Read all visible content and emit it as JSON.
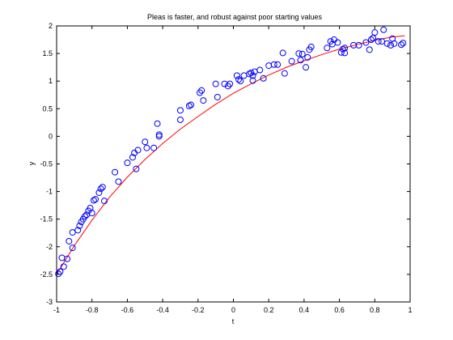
{
  "chart_data": {
    "type": "scatter",
    "title": "Pleas is faster, and robust against poor starting values",
    "xlabel": "t",
    "ylabel": "y",
    "xlim": [
      -1,
      1
    ],
    "ylim": [
      -3,
      2
    ],
    "xticks": [
      -1,
      -0.8,
      -0.6,
      -0.4,
      -0.2,
      0,
      0.2,
      0.4,
      0.6,
      0.8,
      1
    ],
    "xtick_labels": [
      "-1",
      "-0.8",
      "-0.6",
      "-0.4",
      "-0.2",
      "0",
      "0.2",
      "0.4",
      "0.6",
      "0.8",
      "1"
    ],
    "yticks": [
      -3,
      -2.5,
      -2,
      -1.5,
      -1,
      -0.5,
      0,
      0.5,
      1,
      1.5,
      2
    ],
    "ytick_labels": [
      "-3",
      "-2.5",
      "-2",
      "-1.5",
      "-1",
      "-0.5",
      "0",
      "0.5",
      "1",
      "1.5",
      "2"
    ],
    "grid": false,
    "series": [
      {
        "kind": "scatter",
        "marker": "circle-open",
        "color": "#0000ff",
        "points": [
          [
            -0.99,
            -2.49
          ],
          [
            -0.98,
            -2.45
          ],
          [
            -0.97,
            -2.2
          ],
          [
            -0.96,
            -2.36
          ],
          [
            -0.94,
            -2.22
          ],
          [
            -0.93,
            -1.9
          ],
          [
            -0.91,
            -2.02
          ],
          [
            -0.91,
            -1.74
          ],
          [
            -0.88,
            -1.7
          ],
          [
            -0.87,
            -1.62
          ],
          [
            -0.86,
            -1.55
          ],
          [
            -0.85,
            -1.5
          ],
          [
            -0.84,
            -1.45
          ],
          [
            -0.83,
            -1.42
          ],
          [
            -0.82,
            -1.35
          ],
          [
            -0.81,
            -1.3
          ],
          [
            -0.8,
            -1.39
          ],
          [
            -0.79,
            -1.16
          ],
          [
            -0.78,
            -1.14
          ],
          [
            -0.76,
            -1.02
          ],
          [
            -0.75,
            -0.95
          ],
          [
            -0.74,
            -0.92
          ],
          [
            -0.73,
            -1.17
          ],
          [
            -0.67,
            -0.65
          ],
          [
            -0.65,
            -0.82
          ],
          [
            -0.6,
            -0.48
          ],
          [
            -0.57,
            -0.38
          ],
          [
            -0.56,
            -0.3
          ],
          [
            -0.55,
            -0.59
          ],
          [
            -0.54,
            -0.25
          ],
          [
            -0.5,
            -0.1
          ],
          [
            -0.49,
            -0.21
          ],
          [
            -0.45,
            -0.21
          ],
          [
            -0.43,
            0.23
          ],
          [
            -0.42,
            0.03
          ],
          [
            -0.42,
            0.0
          ],
          [
            -0.3,
            0.3
          ],
          [
            -0.3,
            0.47
          ],
          [
            -0.25,
            0.55
          ],
          [
            -0.24,
            0.57
          ],
          [
            -0.19,
            0.79
          ],
          [
            -0.18,
            0.83
          ],
          [
            -0.17,
            0.65
          ],
          [
            -0.1,
            0.95
          ],
          [
            -0.09,
            0.71
          ],
          [
            -0.05,
            0.95
          ],
          [
            -0.03,
            0.91
          ],
          [
            -0.02,
            0.95
          ],
          [
            0.02,
            1.1
          ],
          [
            0.03,
            1.03
          ],
          [
            0.04,
            1.0
          ],
          [
            0.06,
            1.1
          ],
          [
            0.09,
            1.13
          ],
          [
            0.1,
            1.15
          ],
          [
            0.11,
            1.1
          ],
          [
            0.11,
            1.01
          ],
          [
            0.12,
            1.17
          ],
          [
            0.15,
            1.2
          ],
          [
            0.17,
            1.05
          ],
          [
            0.2,
            1.28
          ],
          [
            0.23,
            1.3
          ],
          [
            0.25,
            1.3
          ],
          [
            0.28,
            1.51
          ],
          [
            0.29,
            1.14
          ],
          [
            0.33,
            1.36
          ],
          [
            0.37,
            1.5
          ],
          [
            0.38,
            1.38
          ],
          [
            0.39,
            1.49
          ],
          [
            0.41,
            1.25
          ],
          [
            0.42,
            1.43
          ],
          [
            0.43,
            1.57
          ],
          [
            0.44,
            1.62
          ],
          [
            0.53,
            1.6
          ],
          [
            0.55,
            1.72
          ],
          [
            0.56,
            1.67
          ],
          [
            0.57,
            1.75
          ],
          [
            0.59,
            1.7
          ],
          [
            0.61,
            1.52
          ],
          [
            0.62,
            1.58
          ],
          [
            0.63,
            1.6
          ],
          [
            0.63,
            1.51
          ],
          [
            0.68,
            1.65
          ],
          [
            0.71,
            1.65
          ],
          [
            0.75,
            1.7
          ],
          [
            0.77,
            1.57
          ],
          [
            0.78,
            1.75
          ],
          [
            0.79,
            1.78
          ],
          [
            0.8,
            1.88
          ],
          [
            0.82,
            1.72
          ],
          [
            0.84,
            1.72
          ],
          [
            0.85,
            1.93
          ],
          [
            0.87,
            1.68
          ],
          [
            0.89,
            1.65
          ],
          [
            0.9,
            1.77
          ],
          [
            0.91,
            1.68
          ],
          [
            0.95,
            1.66
          ],
          [
            0.96,
            1.69
          ]
        ]
      },
      {
        "kind": "line",
        "color": "#ff0000",
        "x": [
          -1.0,
          -0.9,
          -0.8,
          -0.7,
          -0.6,
          -0.5,
          -0.4,
          -0.3,
          -0.2,
          -0.1,
          0.0,
          0.1,
          0.2,
          0.3,
          0.4,
          0.5,
          0.6,
          0.7,
          0.8,
          0.9,
          0.97
        ],
        "y": [
          -2.5,
          -1.98,
          -1.52,
          -1.1,
          -0.74,
          -0.42,
          -0.13,
          0.13,
          0.36,
          0.58,
          0.78,
          0.95,
          1.11,
          1.25,
          1.37,
          1.48,
          1.58,
          1.66,
          1.74,
          1.8,
          1.82
        ]
      }
    ]
  }
}
